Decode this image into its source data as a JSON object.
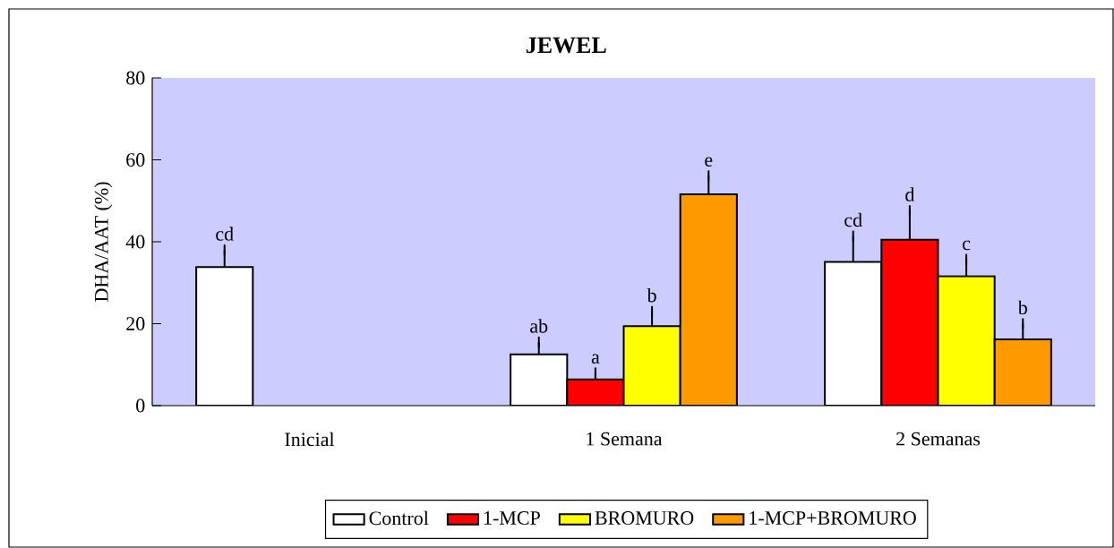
{
  "chart_data": {
    "type": "bar",
    "title": "JEWEL",
    "ylabel": "DHA/AAT (%)",
    "categories": [
      "Inicial",
      "1 Semana",
      "2 Semanas"
    ],
    "series": [
      {
        "name": "Control",
        "color": "#ffffff",
        "values": [
          33.8,
          12.5,
          35.1
        ],
        "errors": [
          [
            33.8,
            38.0
          ],
          [
            12.5,
            15.5
          ],
          [
            35.1,
            41.4
          ]
        ]
      },
      {
        "name": "1-MCP",
        "color": "#ff0000",
        "values": [
          null,
          6.4,
          40.5
        ],
        "errors": [
          null,
          [
            6.4,
            8.0
          ],
          [
            40.5,
            47.6
          ]
        ]
      },
      {
        "name": "BROMURO",
        "color": "#ffff00",
        "values": [
          null,
          19.4,
          31.6
        ],
        "errors": [
          null,
          [
            19.4,
            23.0
          ],
          [
            31.6,
            35.7
          ]
        ]
      },
      {
        "name": "1-MCP+BROMURO",
        "color": "#ff9900",
        "values": [
          null,
          51.6,
          16.2
        ],
        "errors": [
          null,
          [
            51.6,
            56.1
          ],
          [
            16.2,
            20.0
          ]
        ]
      }
    ],
    "ylim": [
      0,
      80
    ],
    "yticks": [
      0,
      20,
      40,
      60,
      80
    ],
    "legend": "bottom",
    "annotations": [
      "cd",
      "ab",
      "a",
      "b",
      "e",
      "cd",
      "d",
      "c",
      "b"
    ]
  }
}
